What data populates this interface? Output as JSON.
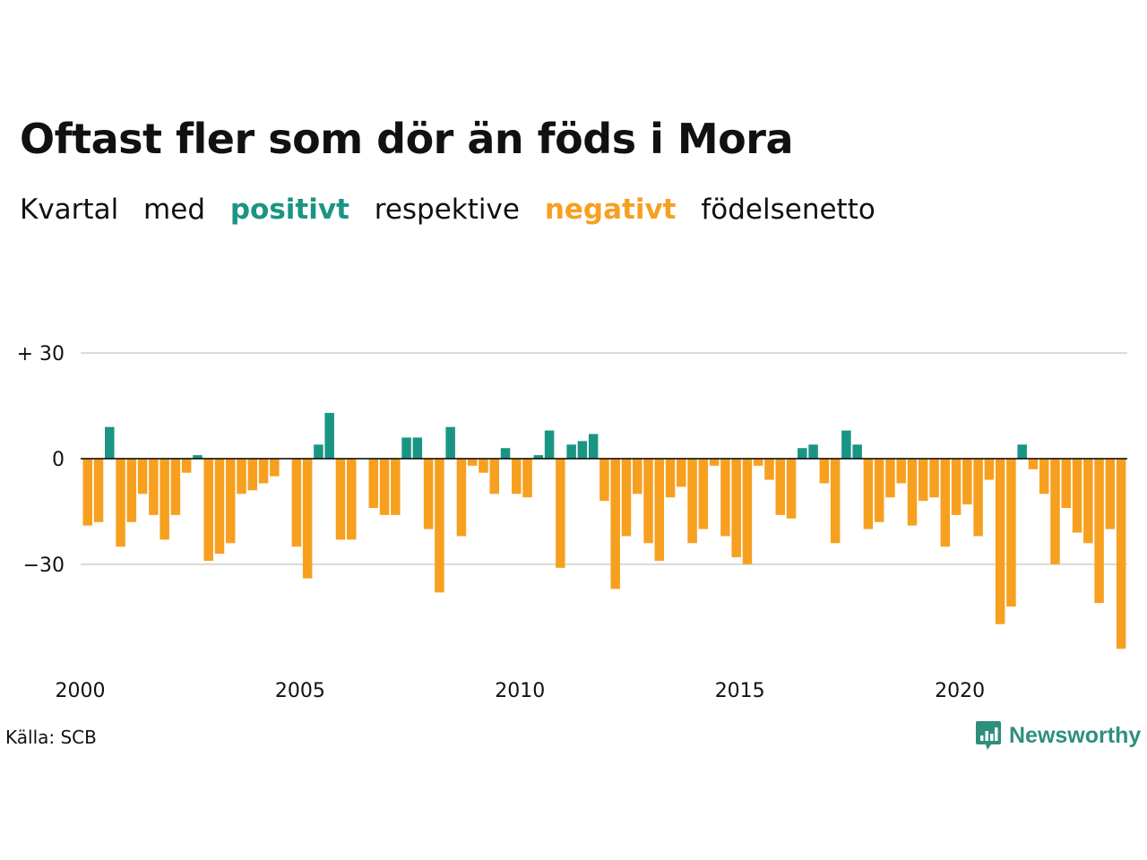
{
  "header": {
    "title": "Oftast fler som dör än föds i Mora",
    "subtitle": {
      "w1": "Kvartal",
      "w2": "med",
      "positive": "positivt",
      "w3": "respektive",
      "negative": "negativt",
      "w4": "födelsenetto"
    }
  },
  "colors": {
    "positive": "#1a9583",
    "negative": "#f7a020",
    "grid": "#d9d9d9",
    "logo": "#2d8f7c"
  },
  "chart_data": {
    "type": "bar",
    "title": "Oftast fler som dör än föds i Mora",
    "subtitle": "Kvartal med positivt respektive negativt födelsenetto",
    "x_start_year": 2000,
    "x_end_year": 2024,
    "periods_per_year": 4,
    "x_tick_labels": [
      "2000",
      "2005",
      "2010",
      "2015",
      "2020"
    ],
    "y_tick_labels": [
      "+ 30",
      "0",
      "−30"
    ],
    "y_ticks": [
      30,
      0,
      -30
    ],
    "ylim": [
      -55,
      32
    ],
    "grid": true,
    "values": [
      -19,
      -18,
      9,
      -25,
      -18,
      -10,
      -16,
      -23,
      -16,
      -4,
      1,
      -29,
      -27,
      -24,
      -10,
      -9,
      -7,
      -5,
      0,
      -25,
      -34,
      4,
      13,
      -23,
      -23,
      0,
      -14,
      -16,
      -16,
      6,
      6,
      -20,
      -38,
      9,
      -22,
      -2,
      -4,
      -10,
      3,
      -10,
      -11,
      1,
      8,
      -31,
      4,
      5,
      7,
      -12,
      -37,
      -22,
      -10,
      -24,
      -29,
      -11,
      -8,
      -24,
      -20,
      -2,
      -22,
      -28,
      -30,
      -2,
      -6,
      -16,
      -17,
      3,
      4,
      -7,
      -24,
      8,
      4,
      -20,
      -18,
      -11,
      -7,
      -19,
      -12,
      -11,
      -25,
      -16,
      -13,
      -22,
      -6,
      -47,
      -42,
      4,
      -3,
      -10,
      -30,
      -14,
      -21,
      -24,
      -41,
      -20,
      -54
    ]
  },
  "footer": {
    "source": "Källa: SCB",
    "logo_text": "Newsworthy",
    "logo_icon": "chart-bubble-icon"
  }
}
